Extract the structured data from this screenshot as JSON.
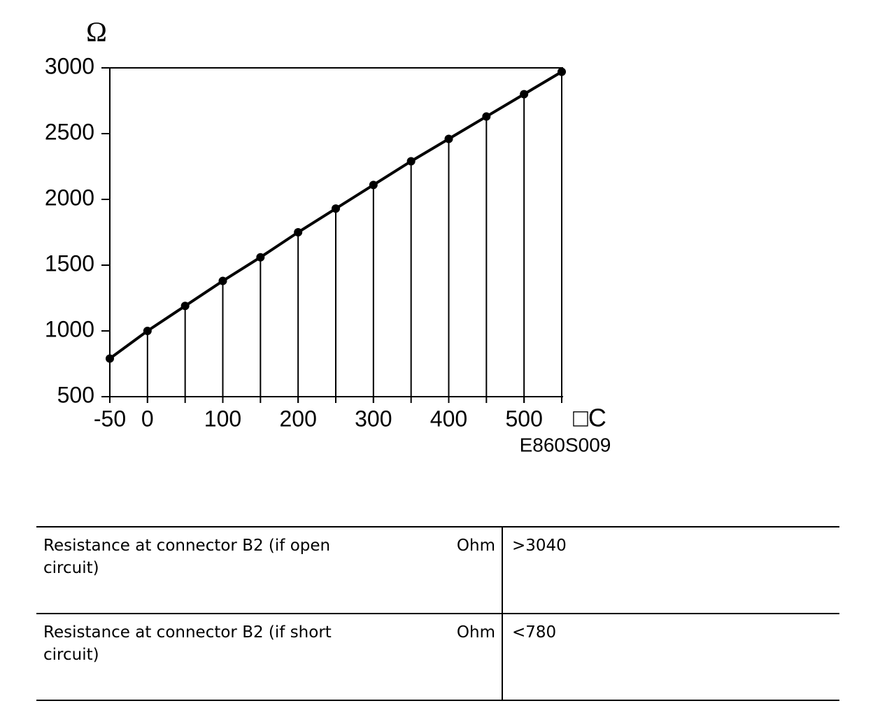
{
  "chart_data": {
    "type": "line",
    "y_label": "Ω",
    "x_label": "□C",
    "annotation": "E860S009",
    "x": [
      -50,
      0,
      50,
      100,
      150,
      200,
      250,
      300,
      350,
      400,
      450,
      500,
      550
    ],
    "values": [
      790,
      1000,
      1190,
      1380,
      1560,
      1750,
      1930,
      2110,
      2290,
      2460,
      2630,
      2800,
      2970
    ],
    "color": "#000000",
    "xlim": [
      -50,
      550
    ],
    "xticks": [
      -50,
      0,
      100,
      200,
      300,
      400,
      500
    ],
    "ylim": [
      500,
      3000
    ],
    "yticks": [
      500,
      1000,
      1500,
      2000,
      2500,
      3000
    ]
  },
  "table": {
    "rows": [
      [
        "Resistance at connector B2 (if open circuit)",
        "Ohm",
        ">3040"
      ],
      [
        "Resistance at connector B2 (if short circuit)",
        "Ohm",
        "<780"
      ]
    ]
  }
}
